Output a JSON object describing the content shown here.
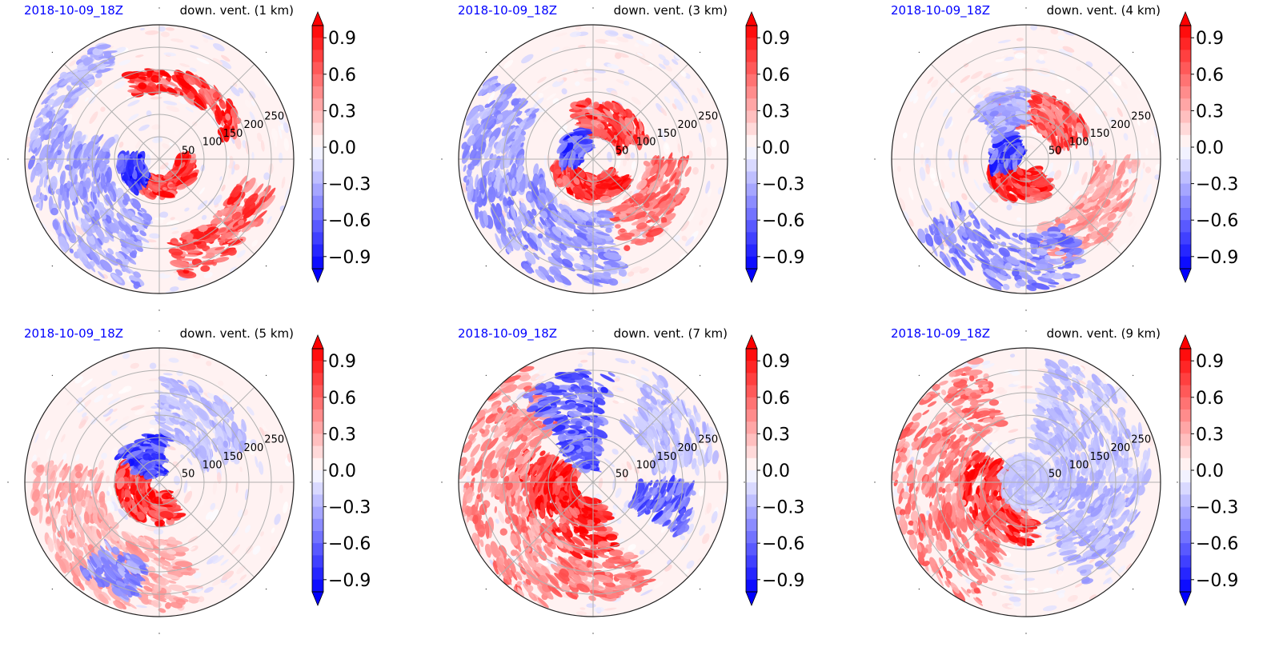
{
  "figure": {
    "panel_count": 6
  },
  "colorbar": {
    "ticks": [
      0.9,
      0.6,
      0.3,
      0.0,
      -0.3,
      -0.6,
      -0.9
    ],
    "tick_labels": [
      "0.9",
      "0.6",
      "0.3",
      "0.0",
      "−0.3",
      "−0.6",
      "−0.9"
    ],
    "vmin": -1.0,
    "vmax": 1.0,
    "levels": 20,
    "extend": "both",
    "colormap": "bwr",
    "color_min": "#0000ff",
    "color_mid": "#ffffff",
    "color_max": "#ff0000"
  },
  "chart_data": [
    {
      "type": "heatmap",
      "projection": "polar",
      "title_left": "2018-10-09_18Z",
      "title_right": "down. vent. (1 km)",
      "title_left_color": "#0000ff",
      "radial_tick_labels": [
        "50",
        "100",
        "150",
        "200",
        "250"
      ],
      "rmax": 300,
      "angular_gridlines_deg": [
        0,
        45,
        90,
        135,
        180,
        225,
        270,
        315
      ],
      "grid": true,
      "features": [
        {
          "kind": "band",
          "sign": 1,
          "r0": 40,
          "r1": 85,
          "t0": 200,
          "t1": 360,
          "strength": 0.9
        },
        {
          "kind": "band",
          "sign": 1,
          "r0": 150,
          "r1": 200,
          "t0": 20,
          "t1": 110,
          "strength": 0.95
        },
        {
          "kind": "band",
          "sign": 1,
          "r0": 180,
          "r1": 265,
          "t0": 280,
          "t1": 345,
          "strength": 0.8
        },
        {
          "kind": "band",
          "sign": -1,
          "r0": 40,
          "r1": 90,
          "t0": 175,
          "t1": 235,
          "strength": 0.85
        },
        {
          "kind": "band",
          "sign": -1,
          "r0": 110,
          "r1": 290,
          "t0": 160,
          "t1": 260,
          "strength": 0.45
        },
        {
          "kind": "band",
          "sign": -1,
          "r0": 230,
          "r1": 285,
          "t0": 115,
          "t1": 160,
          "strength": 0.35
        }
      ]
    },
    {
      "type": "heatmap",
      "projection": "polar",
      "title_left": "2018-10-09_18Z",
      "title_right": "down. vent. (3 km)",
      "title_left_color": "#0000ff",
      "radial_tick_labels": [
        "50",
        "100",
        "150",
        "200",
        "250"
      ],
      "rmax": 300,
      "angular_gridlines_deg": [
        0,
        45,
        90,
        135,
        180,
        225,
        270,
        315
      ],
      "grid": true,
      "features": [
        {
          "kind": "band",
          "sign": 1,
          "r0": 40,
          "r1": 95,
          "t0": 190,
          "t1": 330,
          "strength": 0.95
        },
        {
          "kind": "band",
          "sign": 1,
          "r0": 55,
          "r1": 130,
          "t0": 20,
          "t1": 110,
          "strength": 0.85
        },
        {
          "kind": "band",
          "sign": 1,
          "r0": 120,
          "r1": 220,
          "t0": 290,
          "t1": 360,
          "strength": 0.65
        },
        {
          "kind": "band",
          "sign": -1,
          "r0": 25,
          "r1": 75,
          "t0": 110,
          "t1": 190,
          "strength": 0.8
        },
        {
          "kind": "band",
          "sign": -1,
          "r0": 120,
          "r1": 285,
          "t0": 190,
          "t1": 285,
          "strength": 0.5
        },
        {
          "kind": "band",
          "sign": -1,
          "r0": 160,
          "r1": 290,
          "t0": 140,
          "t1": 200,
          "strength": 0.45
        }
      ]
    },
    {
      "type": "heatmap",
      "projection": "polar",
      "title_left": "2018-10-09_18Z",
      "title_right": "down. vent. (4 km)",
      "title_left_color": "#0000ff",
      "radial_tick_labels": [
        "50",
        "100",
        "150",
        "200",
        "250"
      ],
      "rmax": 300,
      "angular_gridlines_deg": [
        0,
        45,
        90,
        135,
        180,
        225,
        270,
        315
      ],
      "grid": true,
      "features": [
        {
          "kind": "band",
          "sign": 1,
          "r0": 30,
          "r1": 95,
          "t0": 200,
          "t1": 310,
          "strength": 1.0
        },
        {
          "kind": "band",
          "sign": 1,
          "r0": 70,
          "r1": 150,
          "t0": 20,
          "t1": 120,
          "strength": 0.75
        },
        {
          "kind": "band",
          "sign": 1,
          "r0": 150,
          "r1": 250,
          "t0": 280,
          "t1": 360,
          "strength": 0.45
        },
        {
          "kind": "band",
          "sign": -1,
          "r0": 15,
          "r1": 80,
          "t0": 120,
          "t1": 200,
          "strength": 0.8
        },
        {
          "kind": "band",
          "sign": -1,
          "r0": 170,
          "r1": 290,
          "t0": 215,
          "t1": 300,
          "strength": 0.55
        },
        {
          "kind": "band",
          "sign": -1,
          "r0": 80,
          "r1": 160,
          "t0": 90,
          "t1": 140,
          "strength": 0.4
        }
      ]
    },
    {
      "type": "heatmap",
      "projection": "polar",
      "title_left": "2018-10-09_18Z",
      "title_right": "down. vent. (5 km)",
      "title_left_color": "#0000ff",
      "radial_tick_labels": [
        "50",
        "100",
        "150",
        "200",
        "250"
      ],
      "rmax": 300,
      "angular_gridlines_deg": [
        0,
        45,
        90,
        135,
        180,
        225,
        270,
        315
      ],
      "grid": true,
      "features": [
        {
          "kind": "band",
          "sign": 1,
          "r0": 25,
          "r1": 95,
          "t0": 150,
          "t1": 300,
          "strength": 1.0
        },
        {
          "kind": "band",
          "sign": 1,
          "r0": 130,
          "r1": 290,
          "t0": 170,
          "t1": 290,
          "strength": 0.4
        },
        {
          "kind": "band",
          "sign": -1,
          "r0": 20,
          "r1": 110,
          "t0": 80,
          "t1": 150,
          "strength": 0.8
        },
        {
          "kind": "band",
          "sign": -1,
          "r0": 100,
          "r1": 230,
          "t0": 20,
          "t1": 90,
          "strength": 0.3
        },
        {
          "kind": "band",
          "sign": -1,
          "r0": 180,
          "r1": 270,
          "t0": 230,
          "t1": 260,
          "strength": 0.5
        }
      ]
    },
    {
      "type": "heatmap",
      "projection": "polar",
      "title_left": "2018-10-09_18Z",
      "title_right": "down. vent. (7 km)",
      "title_left_color": "#0000ff",
      "radial_tick_labels": [
        "50",
        "100",
        "150",
        "200",
        "250"
      ],
      "rmax": 300,
      "angular_gridlines_deg": [
        0,
        45,
        90,
        135,
        180,
        225,
        270,
        315
      ],
      "grid": true,
      "features": [
        {
          "kind": "band",
          "sign": 1,
          "r0": 40,
          "r1": 170,
          "t0": 150,
          "t1": 290,
          "strength": 1.0
        },
        {
          "kind": "band",
          "sign": 1,
          "r0": 150,
          "r1": 295,
          "t0": 120,
          "t1": 250,
          "strength": 0.55
        },
        {
          "kind": "band",
          "sign": 1,
          "r0": 180,
          "r1": 260,
          "t0": 250,
          "t1": 300,
          "strength": 0.6
        },
        {
          "kind": "band",
          "sign": -1,
          "r0": 30,
          "r1": 250,
          "t0": 80,
          "t1": 130,
          "strength": 0.75
        },
        {
          "kind": "band",
          "sign": -1,
          "r0": 100,
          "r1": 230,
          "t0": 330,
          "t1": 360,
          "strength": 0.7
        },
        {
          "kind": "band",
          "sign": -1,
          "r0": 140,
          "r1": 280,
          "t0": 10,
          "t1": 60,
          "strength": 0.3
        }
      ]
    },
    {
      "type": "heatmap",
      "projection": "polar",
      "title_left": "2018-10-09_18Z",
      "title_right": "down. vent. (9 km)",
      "title_left_color": "#0000ff",
      "radial_tick_labels": [
        "50",
        "100",
        "150",
        "200",
        "250"
      ],
      "rmax": 300,
      "angular_gridlines_deg": [
        0,
        45,
        90,
        135,
        180,
        225,
        270,
        315
      ],
      "grid": true,
      "features": [
        {
          "kind": "band",
          "sign": 1,
          "r0": 40,
          "r1": 140,
          "t0": 150,
          "t1": 280,
          "strength": 0.95
        },
        {
          "kind": "band",
          "sign": 1,
          "r0": 140,
          "r1": 295,
          "t0": 110,
          "t1": 250,
          "strength": 0.6
        },
        {
          "kind": "band",
          "sign": -1,
          "r0": 60,
          "r1": 260,
          "t0": 300,
          "t1": 360,
          "strength": 0.35
        },
        {
          "kind": "band",
          "sign": -1,
          "r0": 80,
          "r1": 280,
          "t0": 0,
          "t1": 80,
          "strength": 0.3
        },
        {
          "kind": "band",
          "sign": -1,
          "r0": 10,
          "r1": 60,
          "t0": 0,
          "t1": 360,
          "strength": 0.25
        }
      ]
    }
  ]
}
